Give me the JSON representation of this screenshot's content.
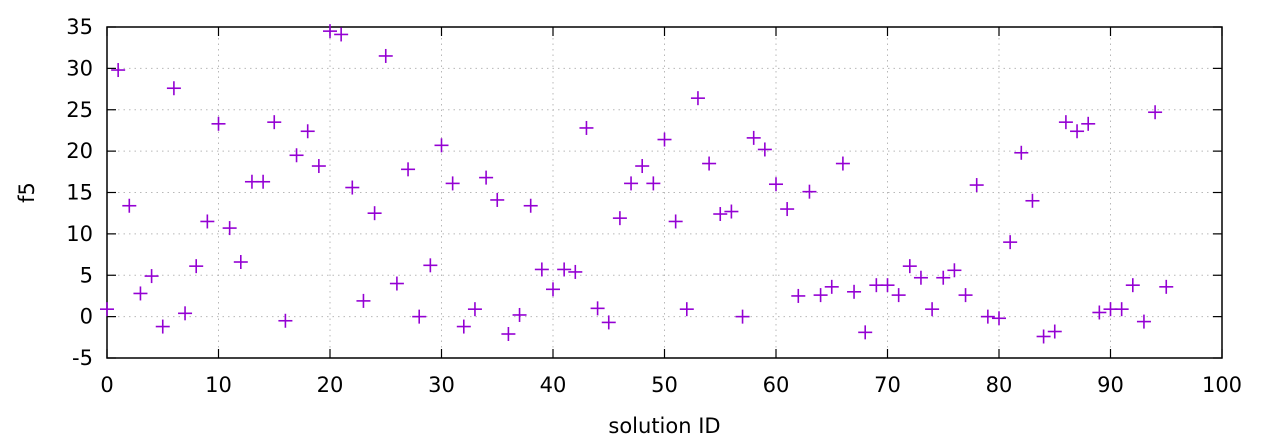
{
  "chart_data": {
    "type": "scatter",
    "title": "",
    "xlabel": "solution ID",
    "ylabel": "f5",
    "xlim": [
      0,
      100
    ],
    "ylim": [
      -5,
      35
    ],
    "xticks": [
      0,
      10,
      20,
      30,
      40,
      50,
      60,
      70,
      80,
      90,
      100
    ],
    "yticks": [
      -5,
      0,
      5,
      10,
      15,
      20,
      25,
      30,
      35
    ],
    "xtick_labels": [
      "0",
      "10",
      "20",
      "30",
      "40",
      "50",
      "60",
      "70",
      "80",
      "90",
      "100"
    ],
    "ytick_labels": [
      "-5",
      "0",
      "5",
      "10",
      "15",
      "20",
      "25",
      "30",
      "35"
    ],
    "grid": true,
    "marker": "+",
    "marker_color": "#9400d3",
    "series": [
      {
        "x": [
          0,
          1,
          2,
          3,
          4,
          5,
          6,
          7,
          8,
          9,
          10,
          11,
          12,
          13,
          14,
          15,
          16,
          17,
          18,
          19,
          20,
          21,
          22,
          23,
          24,
          25,
          26,
          27,
          28,
          29,
          30,
          31,
          32,
          33,
          34,
          35,
          36,
          37,
          38,
          39,
          40,
          41,
          42,
          43,
          44,
          45,
          46,
          47,
          48,
          49,
          50,
          51,
          52,
          53,
          54,
          55,
          56,
          57,
          58,
          59,
          60,
          61,
          62,
          63,
          64,
          65,
          66,
          67,
          68,
          69,
          70,
          71,
          72,
          73,
          74,
          75,
          76,
          77,
          78,
          79,
          80,
          81,
          82,
          83,
          84,
          85,
          86,
          87,
          88,
          89,
          90,
          91,
          92,
          93,
          94,
          95
        ],
        "y": [
          0.9,
          29.8,
          13.4,
          2.8,
          4.9,
          -1.2,
          27.6,
          0.4,
          6.1,
          11.5,
          23.3,
          10.7,
          6.6,
          16.3,
          16.3,
          23.5,
          -0.5,
          19.5,
          22.4,
          18.2,
          34.5,
          34.1,
          15.6,
          1.9,
          12.5,
          31.5,
          4.0,
          17.8,
          0.0,
          6.2,
          20.7,
          16.1,
          -1.2,
          0.9,
          16.8,
          14.1,
          -2.1,
          0.2,
          13.4,
          5.7,
          3.3,
          5.7,
          5.4,
          22.8,
          1.0,
          -0.7,
          11.9,
          16.1,
          18.2,
          16.1,
          21.4,
          11.5,
          0.9,
          26.4,
          18.5,
          12.4,
          12.7,
          0.0,
          21.6,
          20.2,
          16.0,
          13.0,
          2.5,
          15.1,
          2.6,
          3.6,
          18.5,
          3.0,
          -1.9,
          3.8,
          3.8,
          2.6,
          6.1,
          4.7,
          0.9,
          4.7,
          5.6,
          2.6,
          15.9,
          0.0,
          -0.2,
          9.0,
          19.8,
          14.0,
          -2.4,
          -1.8,
          23.5,
          22.4,
          23.3,
          0.5,
          0.9,
          0.9,
          3.8,
          -0.6,
          24.7,
          3.6
        ]
      }
    ]
  }
}
